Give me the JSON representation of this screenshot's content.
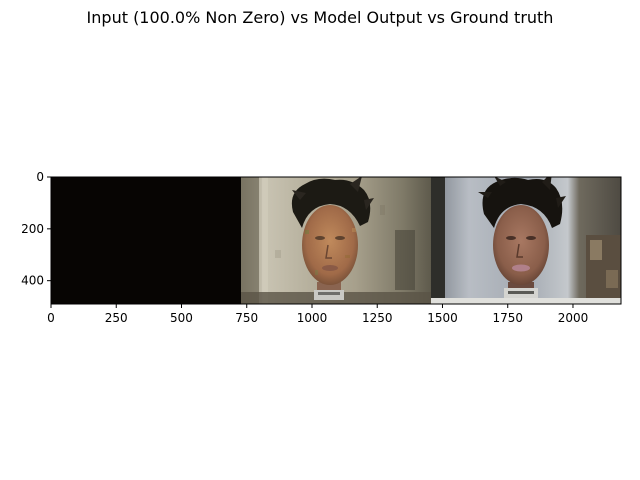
{
  "figure": {
    "title": "Input (100.0% Non Zero) vs Model Output vs Ground truth"
  },
  "axes": {
    "x_ticks": [
      "0",
      "250",
      "500",
      "750",
      "1000",
      "1250",
      "1500",
      "1750",
      "2000"
    ],
    "y_ticks": [
      "0",
      "200",
      "400"
    ],
    "xlim": [
      0,
      2184
    ],
    "ylim": [
      0,
      490
    ]
  },
  "panels": [
    {
      "role": "input",
      "icon": "dark-image-panel",
      "x_range": [
        0,
        728
      ]
    },
    {
      "role": "model-output",
      "icon": "reconstructed-face-image",
      "x_range": [
        728,
        1456
      ]
    },
    {
      "role": "ground-truth",
      "icon": "mannequin-head-photo",
      "x_range": [
        1456,
        2184
      ]
    }
  ],
  "colors": {
    "input_panel": "#050403",
    "output_background": "#b9b3a2",
    "gt_background": "#9aa1ab",
    "skin": "#9a6a52",
    "hair": "#1c1814"
  }
}
